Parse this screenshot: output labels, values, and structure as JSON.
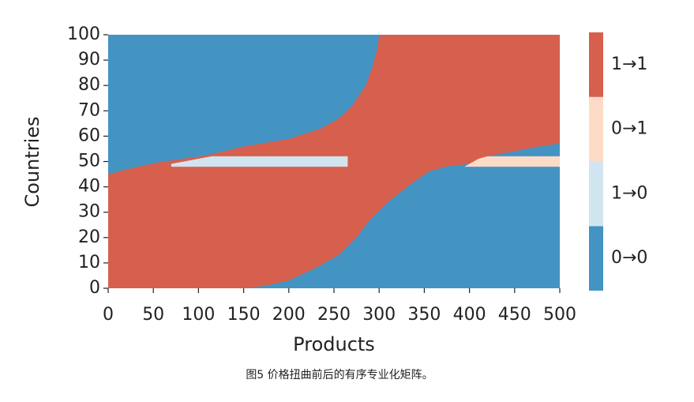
{
  "chart_data": {
    "type": "heatmap",
    "xlabel": "Products",
    "ylabel": "Countries",
    "caption": "图5 价格扭曲前后的有序专业化矩阵。",
    "xlim": [
      0,
      500
    ],
    "ylim": [
      0,
      100
    ],
    "xticks": [
      0,
      50,
      100,
      150,
      200,
      250,
      300,
      350,
      400,
      450,
      500
    ],
    "yticks": [
      0,
      10,
      20,
      30,
      40,
      50,
      60,
      70,
      80,
      90,
      100
    ],
    "series": [
      {
        "name": "0→0",
        "color": "#4393c3",
        "regions": [
          {
            "x": [
              0,
              300,
              298,
              293,
              285,
              270,
              255,
              235,
              200,
              150,
              115,
              100,
              60,
              45,
              20,
              0
            ],
            "y": [
              100,
              100,
              95,
              88,
              80,
              72,
              67,
              63,
              59,
              56,
              53,
              52,
              50,
              49,
              47,
              45
            ]
          },
          {
            "x": [
              155,
              175,
              200,
              230,
              255,
              275,
              290,
              310,
              335,
              355,
              375,
              400,
              420,
              450,
              480,
              500,
              500
            ],
            "y": [
              0,
              1,
              3,
              8,
              13,
              20,
              27,
              34,
              41,
              46,
              48,
              49,
              52,
              54,
              56,
              57,
              0
            ]
          }
        ]
      },
      {
        "name": "1→0",
        "color": "#d1e5f0",
        "regions": [
          {
            "x": [
              70,
              265,
              265,
              115,
              100,
              70
            ],
            "y": [
              48,
              48,
              52,
              52,
              51,
              49
            ]
          }
        ]
      },
      {
        "name": "0→1",
        "color": "#fddbc7",
        "regions": [
          {
            "x": [
              395,
              500,
              500,
              420,
              410
            ],
            "y": [
              48,
              48,
              52,
              52,
              51
            ]
          }
        ]
      },
      {
        "name": "1→1",
        "color": "#d6604d",
        "regions": [
          {
            "x": [
              0,
              500,
              500,
              0
            ],
            "y": [
              0,
              0,
              100,
              100
            ]
          }
        ]
      }
    ]
  }
}
